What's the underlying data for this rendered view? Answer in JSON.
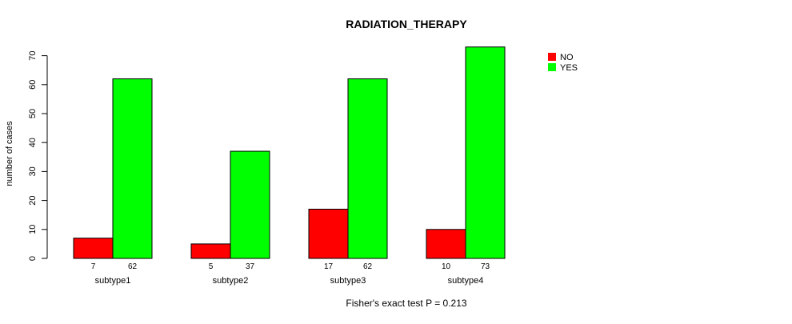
{
  "chart_data": {
    "type": "bar",
    "title": "RADIATION_THERAPY",
    "xlabel": "",
    "ylabel": "number of cases",
    "footnote": "Fisher's exact test P = 0.213",
    "categories": [
      "subtype1",
      "subtype2",
      "subtype3",
      "subtype4"
    ],
    "series": [
      {
        "name": "NO",
        "values": [
          7,
          5,
          17,
          10
        ],
        "color": "#ff0000"
      },
      {
        "name": "YES",
        "values": [
          62,
          37,
          62,
          73
        ],
        "color": "#00ff00"
      }
    ],
    "ylim": [
      0,
      73
    ],
    "yticks": [
      0,
      10,
      20,
      30,
      40,
      50,
      60,
      70
    ],
    "legend_position": "top-right",
    "grid": false
  }
}
